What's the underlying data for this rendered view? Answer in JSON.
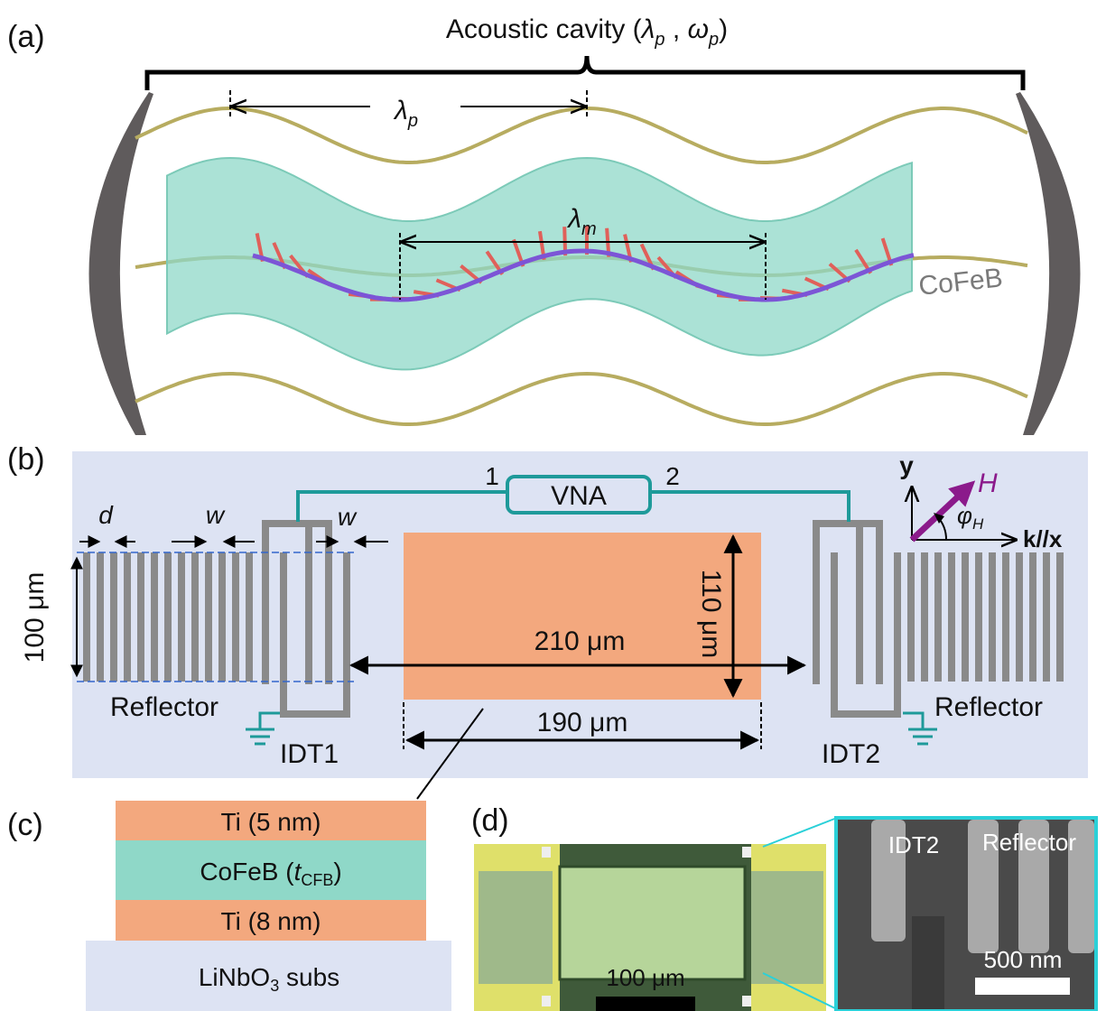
{
  "panel_a": {
    "label": "(a)",
    "title": [
      "Acoustic cavity (",
      "λ",
      "p",
      " , ",
      "ω",
      "p",
      ")"
    ],
    "lambda_p": [
      "λ",
      "p"
    ],
    "lambda_m": [
      "λ",
      "m"
    ],
    "material": "CoFeB"
  },
  "panel_b": {
    "label": "(b)",
    "port_1": "1",
    "vna": "VNA",
    "port_2": "2",
    "axis_y": "y",
    "field": "H",
    "angle": [
      "φ",
      "H"
    ],
    "axis_x": "k//x",
    "d": "d",
    "w_left": "w",
    "w_right": "w",
    "reflector_height": "100 μm",
    "film_width": "110 μm",
    "idt_distance": "210 μm",
    "film_length": "190 μm",
    "reflector_left": "Reflector",
    "idt1": "IDT1",
    "idt2": "IDT2",
    "reflector_right": "Reflector"
  },
  "panel_c": {
    "label": "(c)",
    "layers": [
      [
        "Ti (5 nm)"
      ],
      [
        "CoFeB (",
        "t",
        "CFB",
        ")"
      ],
      [
        "Ti (8 nm)"
      ],
      [
        "LiNbO",
        "3",
        " subs"
      ]
    ]
  },
  "panel_d": {
    "label": "(d)",
    "scale_bar": "100 μm",
    "inset_idt": "IDT2",
    "inset_reflector": "Reflector",
    "inset_scale_bar": "500 nm"
  }
}
